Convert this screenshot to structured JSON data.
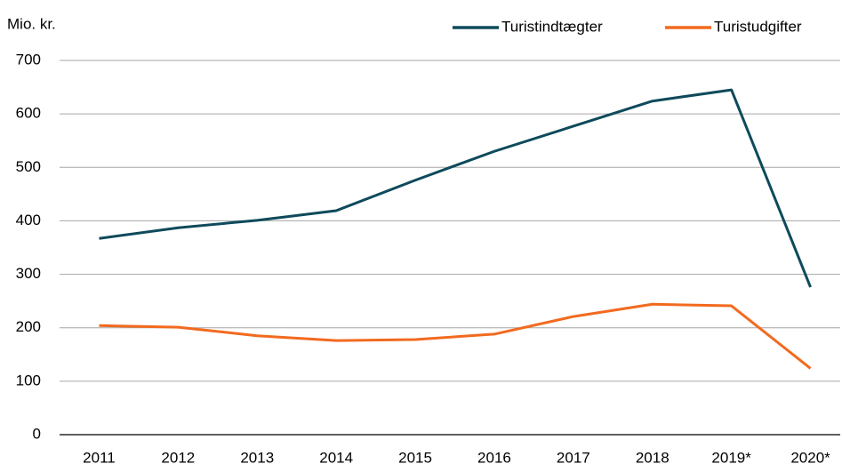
{
  "chart_data": {
    "type": "line",
    "y_label": "Mio. kr.",
    "categories": [
      "2011",
      "2012",
      "2013",
      "2014",
      "2015",
      "2016",
      "2017",
      "2018",
      "2019*",
      "2020*"
    ],
    "series": [
      {
        "name": "Turistindtægter",
        "color": "#0e4a5b",
        "values": [
          367,
          387,
          401,
          419,
          476,
          530,
          577,
          624,
          645,
          276
        ]
      },
      {
        "name": "Turistudgifter",
        "color": "#f26a1f",
        "values": [
          204,
          201,
          185,
          176,
          178,
          188,
          221,
          244,
          241,
          124
        ]
      }
    ],
    "ylim": [
      0,
      700
    ],
    "yticks": [
      0,
      100,
      200,
      300,
      400,
      500,
      600,
      700
    ],
    "grid": true,
    "legend": "top-right"
  }
}
